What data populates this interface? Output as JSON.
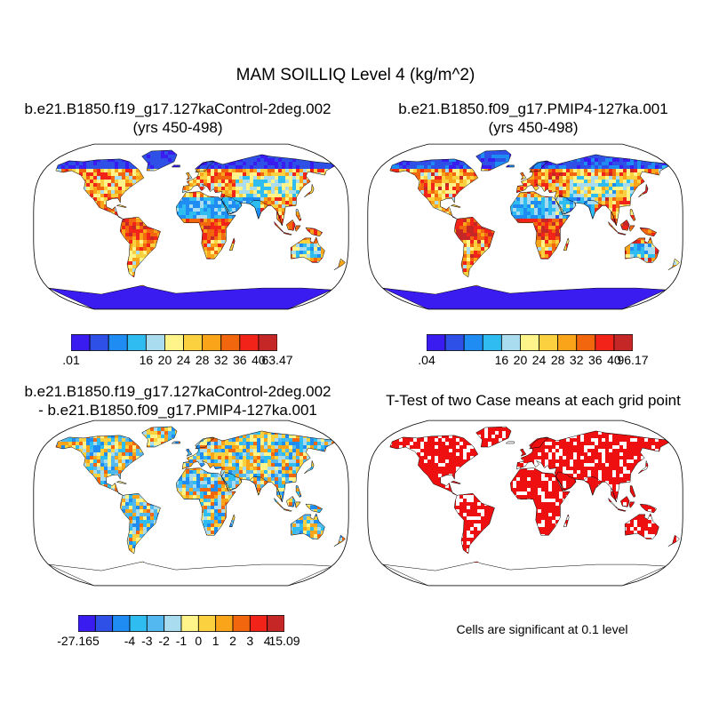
{
  "figure": {
    "title": "MAM SOILLIQ Level 4 (kg/m^2)"
  },
  "panels": [
    {
      "title_line1": "b.e21.B1850.f19_g17.127kaControl-2deg.002",
      "title_line2": "(yrs 450-498)",
      "colorbar": {
        "colors": [
          "#3a1cf0",
          "#2e50e6",
          "#1f8cf3",
          "#2fbcf0",
          "#a8dcee",
          "#fff48a",
          "#fcd140",
          "#f9a419",
          "#f2660d",
          "#f2241a",
          "#c52727"
        ],
        "labels": [
          ".01",
          "16",
          "20",
          "24",
          "28",
          "32",
          "36",
          "40",
          "63.47"
        ]
      }
    },
    {
      "title_line1": "b.e21.B1850.f09_g17.PMIP4-127ka.001",
      "title_line2": "(yrs 450-498)",
      "colorbar": {
        "colors": [
          "#3a1cf0",
          "#2e50e6",
          "#1f8cf3",
          "#2fbcf0",
          "#a8dcee",
          "#fff48a",
          "#fcd140",
          "#f9a419",
          "#f2660d",
          "#f2241a",
          "#c52727"
        ],
        "labels": [
          ".04",
          "16",
          "20",
          "24",
          "28",
          "32",
          "36",
          "40",
          "96.17"
        ]
      }
    },
    {
      "title_line1": "b.e21.B1850.f19_g17.127kaControl-2deg.002",
      "title_line2": "- b.e21.B1850.f09_g17.PMIP4-127ka.001",
      "colorbar": {
        "colors": [
          "#3a1cf0",
          "#2e50e6",
          "#1f8cf3",
          "#2fbcf0",
          "#52b8ef",
          "#a8dcee",
          "#fff48a",
          "#fcd140",
          "#f9a419",
          "#f2660d",
          "#f2241a",
          "#c52727"
        ],
        "labels": [
          "-27.165",
          "-4",
          "-3",
          "-2",
          "-1",
          "0",
          "1",
          "2",
          "3",
          "4",
          "15.09"
        ]
      }
    },
    {
      "title_line1": "T-Test of two Case means at each grid point",
      "note": "Cells are significant at 0.1 level",
      "fill_color": "#ee1010"
    }
  ]
}
